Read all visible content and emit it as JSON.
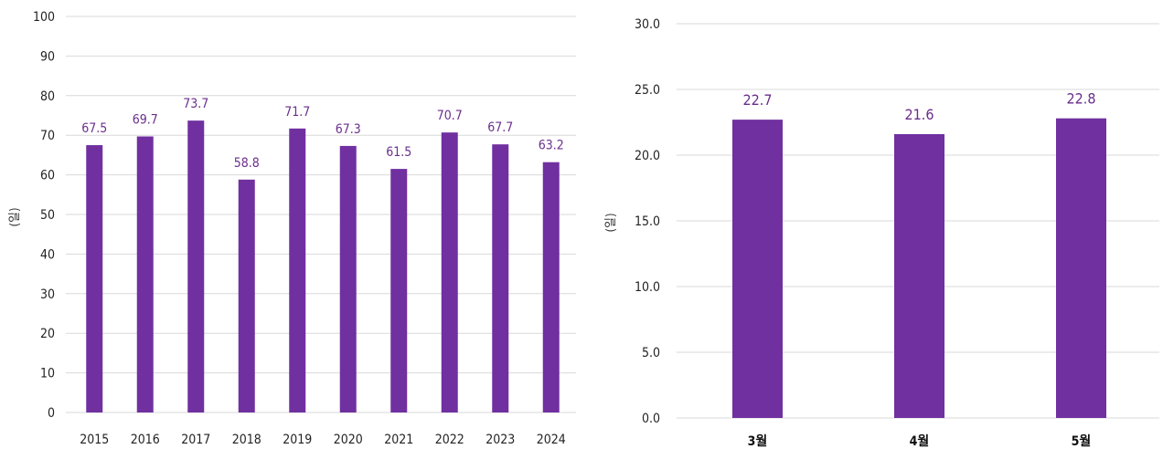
{
  "colors": {
    "bar": "#7030a0",
    "label": "#6a2e8c",
    "grid": "#d9d9d9",
    "axis_text": "#222222"
  },
  "chart_data": [
    {
      "type": "bar",
      "categories": [
        "2015",
        "2016",
        "2017",
        "2018",
        "2019",
        "2020",
        "2021",
        "2022",
        "2023",
        "2024"
      ],
      "values": [
        67.5,
        69.7,
        73.7,
        58.8,
        71.7,
        67.3,
        61.5,
        70.7,
        67.7,
        63.2
      ],
      "data_labels": [
        "67.5",
        "69.7",
        "73.7",
        "58.8",
        "71.7",
        "67.3",
        "61.5",
        "70.7",
        "67.7",
        "63.2"
      ],
      "yticks": [
        "0",
        "10",
        "20",
        "30",
        "40",
        "50",
        "60",
        "70",
        "80",
        "90",
        "100"
      ],
      "ylim": [
        0,
        100
      ],
      "ylabel": "(일)",
      "xlabel": "",
      "title": "",
      "grid": true
    },
    {
      "type": "bar",
      "categories": [
        "3월",
        "4월",
        "5월"
      ],
      "values": [
        22.7,
        21.6,
        22.8
      ],
      "data_labels": [
        "22.7",
        "21.6",
        "22.8"
      ],
      "yticks": [
        "0.0",
        "5.0",
        "10.0",
        "15.0",
        "20.0",
        "25.0",
        "30.0"
      ],
      "ylim": [
        0,
        30
      ],
      "ylabel": "(일)",
      "xlabel": "",
      "title": "",
      "grid": true
    }
  ]
}
